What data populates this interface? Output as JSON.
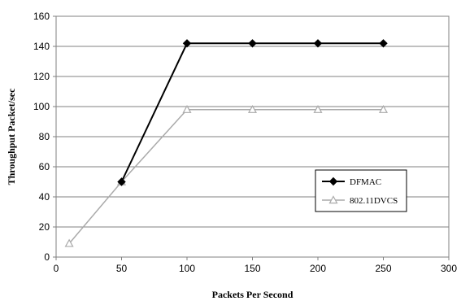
{
  "chart_data": {
    "type": "line",
    "title": "",
    "xlabel": "Packets Per Second",
    "ylabel": "Throughput Packet/sec",
    "xlim": [
      0,
      300
    ],
    "ylim": [
      0,
      160
    ],
    "x_ticks": [
      0,
      50,
      100,
      150,
      200,
      250,
      300
    ],
    "y_ticks": [
      0,
      20,
      40,
      60,
      80,
      100,
      120,
      140,
      160
    ],
    "grid": "horizontal",
    "legend_position": "right",
    "series": [
      {
        "name": "DFMAC",
        "color": "#000000",
        "marker": "diamond",
        "x": [
          50,
          100,
          150,
          200,
          250
        ],
        "y": [
          50,
          142,
          142,
          142,
          142
        ]
      },
      {
        "name": "802.11DVCS",
        "color": "#aaaaaa",
        "marker": "triangle",
        "x": [
          10,
          50,
          100,
          150,
          200,
          250
        ],
        "y": [
          9,
          50,
          98,
          98,
          98,
          98
        ]
      }
    ]
  }
}
